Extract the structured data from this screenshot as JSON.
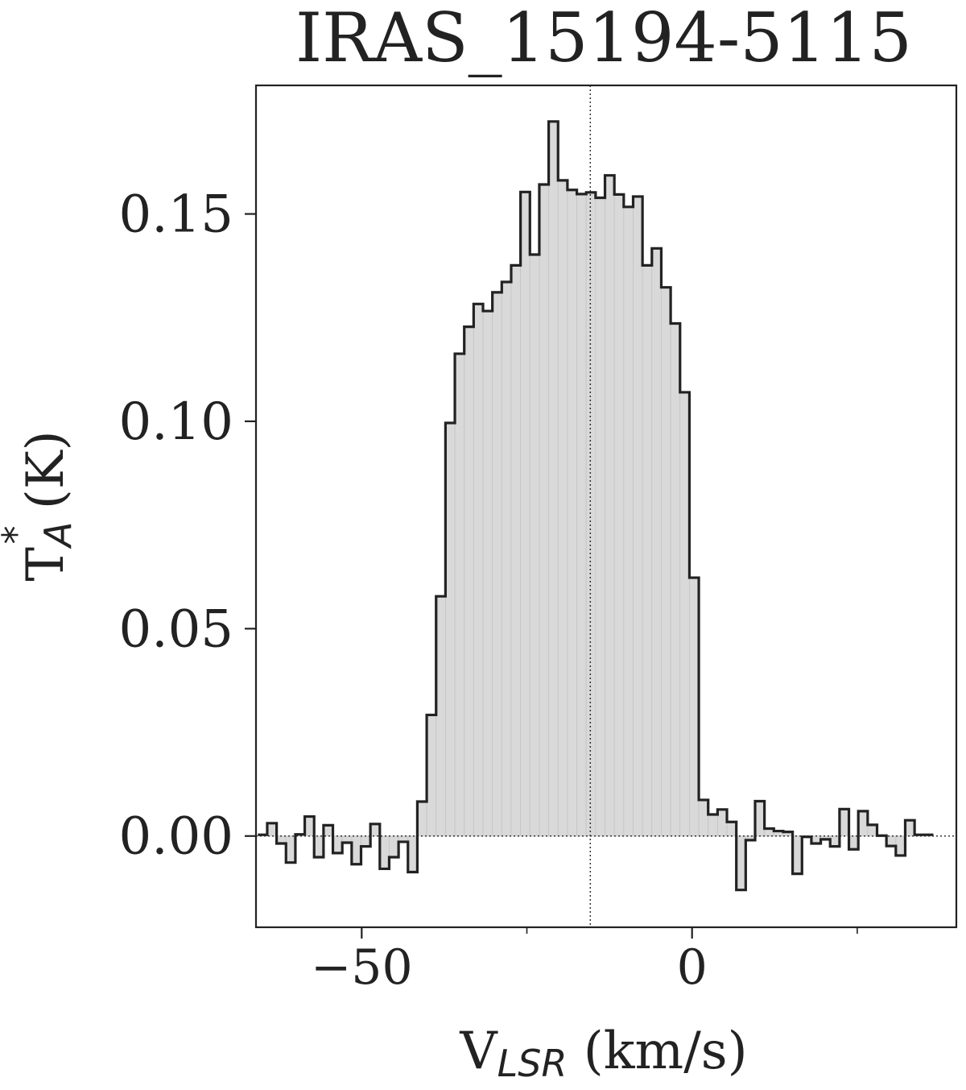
{
  "chart_data": {
    "type": "line",
    "style": "step-histogram with filled area under curve",
    "title": "IRAS_15194-5115",
    "xlabel": {
      "main": "V",
      "sub": "LSR",
      "unit": " (km/s)"
    },
    "ylabel": {
      "main": "T",
      "sub": "A",
      "sup": "*",
      "unit": " (K)"
    },
    "xlim": [
      -66,
      40
    ],
    "ylim": [
      -0.022,
      0.181
    ],
    "xticks": [
      -50,
      0
    ],
    "xtick_labels": [
      "−50",
      "0"
    ],
    "xminor_ticks": [
      -25,
      25
    ],
    "yticks": [
      0.0,
      0.05,
      0.1,
      0.15
    ],
    "ytick_labels": [
      "0.00",
      "0.05",
      "0.10",
      "0.15"
    ],
    "reference_lines": {
      "vertical_x": -15.4,
      "horizontal_y": 0.0,
      "style": "dotted"
    },
    "grid": false,
    "colors": {
      "line": "#222222",
      "fill": "#d9d9d9",
      "fill_stripe": "#c4c4c4"
    },
    "series": [
      {
        "bin_width": 1.42,
        "x": [
          -65.01,
          -63.59,
          -62.17,
          -60.75,
          -59.33,
          -57.91,
          -56.49,
          -55.07,
          -53.65,
          -52.23,
          -50.81,
          -49.39,
          -47.97,
          -46.55,
          -45.13,
          -43.71,
          -42.29,
          -40.87,
          -39.45,
          -38.03,
          -36.61,
          -35.19,
          -33.77,
          -32.35,
          -30.93,
          -29.51,
          -28.09,
          -26.67,
          -25.25,
          -23.83,
          -22.41,
          -20.99,
          -19.57,
          -18.15,
          -16.73,
          -15.31,
          -13.89,
          -12.47,
          -11.05,
          -9.63,
          -8.21,
          -6.79,
          -5.37,
          -3.95,
          -2.53,
          -1.11,
          0.31,
          1.73,
          3.15,
          4.57,
          5.99,
          7.41,
          8.83,
          10.25,
          11.67,
          13.09,
          14.51,
          15.93,
          17.35,
          18.77,
          20.19,
          21.61,
          23.03,
          24.45,
          25.87,
          27.29,
          28.71,
          30.13,
          31.55,
          32.97,
          34.39,
          35.81
        ],
        "values": [
          0.0003,
          0.0031,
          -0.0018,
          -0.0064,
          0.0004,
          0.0047,
          -0.0051,
          0.0026,
          -0.0041,
          -0.0016,
          -0.0068,
          -0.0025,
          0.0029,
          -0.0079,
          -0.0051,
          -0.0014,
          -0.0087,
          0.0083,
          0.0292,
          0.0578,
          0.0996,
          0.1163,
          0.1228,
          0.1283,
          0.1266,
          0.1311,
          0.1336,
          0.1376,
          0.1553,
          0.1402,
          0.1571,
          0.1723,
          0.1581,
          0.1558,
          0.1548,
          0.1552,
          0.1539,
          0.1593,
          0.1547,
          0.1517,
          0.1542,
          0.1376,
          0.1417,
          0.1323,
          0.1236,
          0.107,
          0.0623,
          0.0087,
          0.0052,
          0.0064,
          0.0034,
          -0.013,
          -0.001,
          0.0084,
          0.0018,
          0.0012,
          0.001,
          -0.0091,
          -0.0002,
          -0.0018,
          -0.0008,
          -0.0025,
          0.0065,
          -0.0032,
          0.006,
          0.0027,
          0.0001,
          -0.0024,
          -0.0047,
          0.0038,
          0.0003,
          0.0003
        ]
      }
    ]
  }
}
